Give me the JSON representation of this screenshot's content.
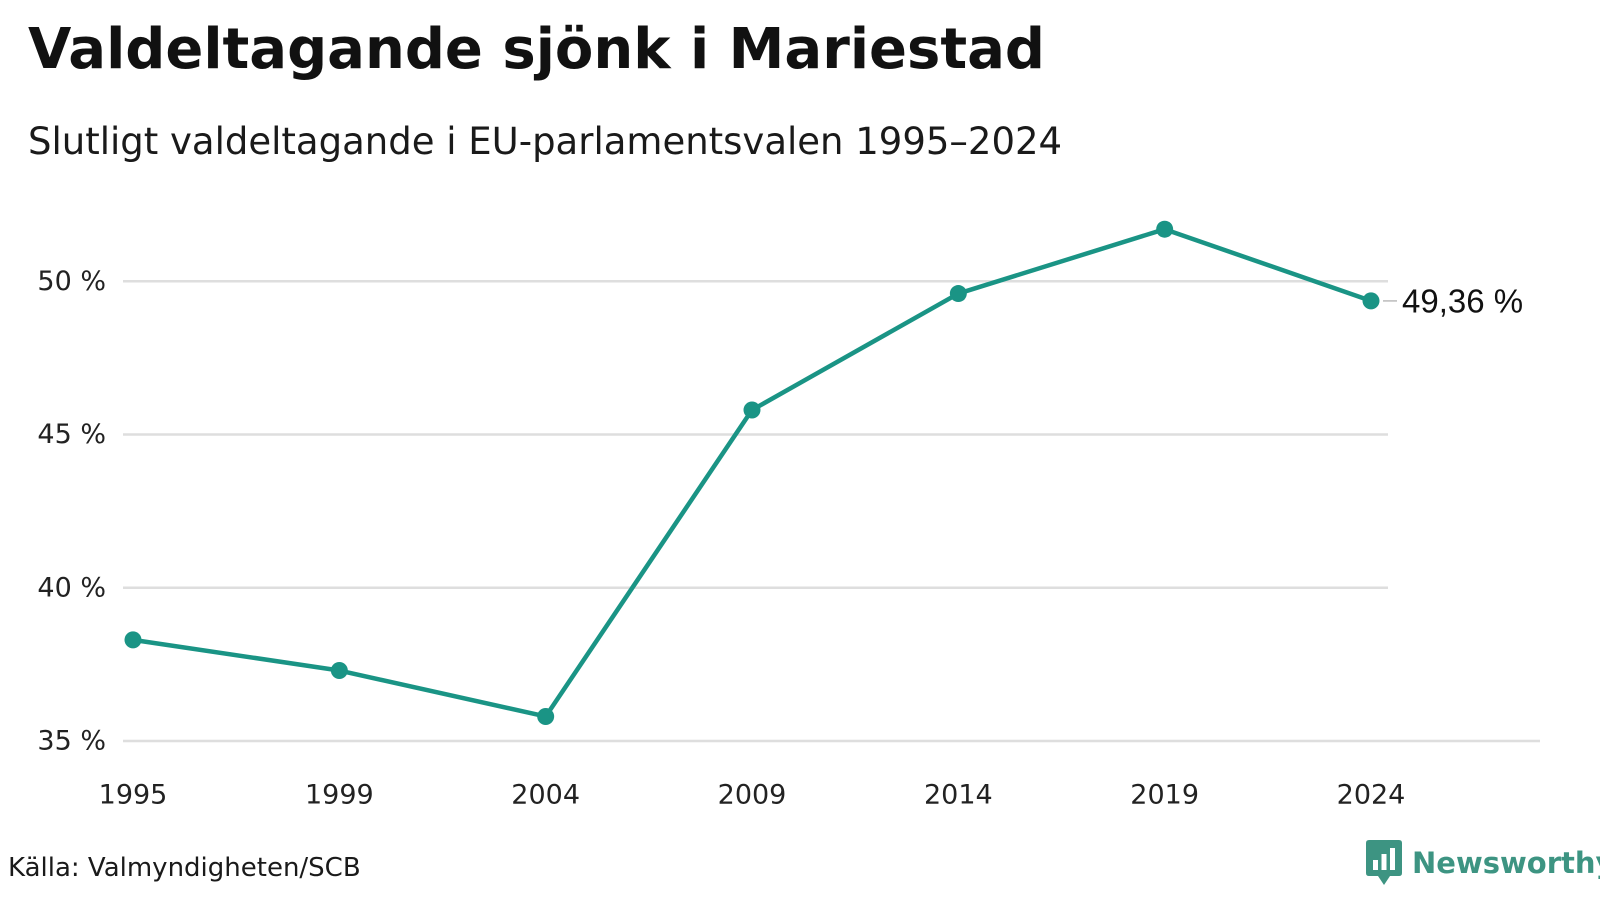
{
  "chart_data": {
    "type": "line",
    "title": "Valdeltagande sjönk i Mariestad",
    "subtitle": "Slutligt valdeltagande i EU-parlamentsvalen 1995–2024",
    "x": [
      "1995",
      "1999",
      "2004",
      "2009",
      "2014",
      "2019",
      "2024"
    ],
    "series": [
      {
        "values": [
          38.3,
          37.3,
          35.8,
          45.8,
          49.6,
          51.7,
          49.36
        ],
        "color": "#1a9485"
      }
    ],
    "ylim": [
      35,
      52
    ],
    "yticks": [
      35,
      40,
      45,
      50
    ],
    "ytick_labels": [
      "35 %",
      "40 %",
      "45 %",
      "50 %"
    ],
    "xlabel": "",
    "ylabel": "",
    "grid": true,
    "end_label": "49,36 %",
    "colors": {
      "line": "#1a9485",
      "grid": "#dedede",
      "brand": "#3d9482"
    }
  },
  "footer": {
    "source": "Källa: Valmyndigheten/SCB",
    "brand": "Newsworthy",
    "brand_icon": "newsworthy-logo-icon"
  }
}
